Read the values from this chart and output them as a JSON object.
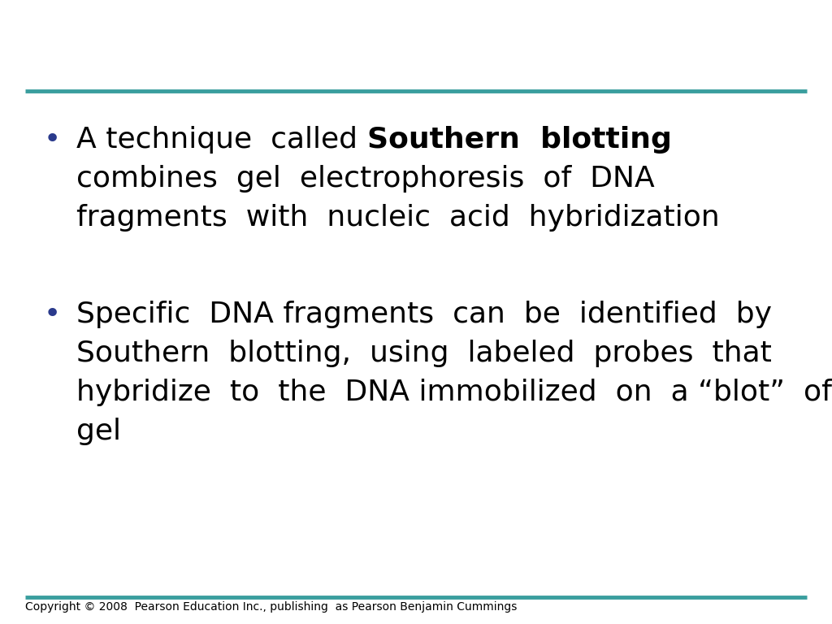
{
  "background_color": "#ffffff",
  "teal_line_color": "#3a9e9e",
  "bullet_color": "#2a3a8c",
  "main_fontsize": 26,
  "copyright_fontsize": 10,
  "copyright_text": "Copyright © 2008  Pearson Education Inc., publishing  as Pearson Benjamin Cummings"
}
